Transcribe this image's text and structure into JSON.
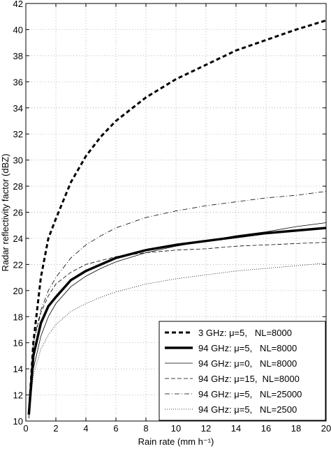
{
  "chart_data": {
    "type": "line",
    "xlabel": "Rain rate (mm h⁻¹)",
    "ylabel": "Radar reflectivity factor (dBZ)",
    "x": [
      0.2,
      0.5,
      1,
      1.5,
      2,
      3,
      4,
      5,
      6,
      8,
      10,
      12,
      14,
      16,
      18,
      20
    ],
    "series": [
      {
        "name": "3 GHz: μ=5,   NL=8000",
        "color": "#000000",
        "width": 3,
        "dash": "6 4",
        "values": [
          10.5,
          16,
          21,
          24,
          25.5,
          28.3,
          30.3,
          31.8,
          33,
          34.8,
          36.2,
          37.3,
          38.4,
          39.2,
          40,
          40.7
        ]
      },
      {
        "name": "94 GHz: μ=5,   NL=8000",
        "color": "#000000",
        "width": 3.5,
        "dash": "none",
        "values": [
          10.5,
          15,
          17.5,
          18.8,
          19.5,
          20.8,
          21.5,
          22,
          22.5,
          23.1,
          23.5,
          23.8,
          24.1,
          24.4,
          24.6,
          24.8
        ]
      },
      {
        "name": "94 GHz: μ=0,   NL=8000",
        "color": "#000000",
        "width": 0.8,
        "dash": "none",
        "values": [
          10.2,
          14,
          16.5,
          18,
          19,
          20.3,
          21.1,
          21.7,
          22.2,
          22.9,
          23.4,
          23.8,
          24.2,
          24.5,
          24.9,
          25.2
        ]
      },
      {
        "name": "94 GHz: μ=15,  NL=8000",
        "color": "#000000",
        "width": 0.8,
        "dash": "6 3",
        "values": [
          11,
          16,
          18.3,
          19.6,
          20.5,
          21.4,
          22,
          22.3,
          22.6,
          22.9,
          23.1,
          23.2,
          23.4,
          23.5,
          23.6,
          23.7
        ]
      },
      {
        "name": "94 GHz: μ=5,   NL=25000",
        "color": "#000000",
        "width": 0.8,
        "dash": "7 3 1 3",
        "values": [
          11,
          16,
          18.5,
          20,
          21,
          22.5,
          23.5,
          24.2,
          24.8,
          25.6,
          26.1,
          26.5,
          26.8,
          27.1,
          27.3,
          27.6
        ]
      },
      {
        "name": "94 GHz: μ=5,   NL=2500",
        "color": "#000000",
        "width": 0.8,
        "dash": "1 2",
        "values": [
          10.3,
          13.5,
          15.5,
          16.6,
          17.4,
          18.4,
          19,
          19.5,
          19.9,
          20.5,
          20.9,
          21.2,
          21.5,
          21.7,
          21.9,
          22.1
        ]
      }
    ],
    "xlim": [
      0,
      20
    ],
    "xticks": [
      0,
      2,
      4,
      6,
      8,
      10,
      12,
      14,
      16,
      18,
      20
    ],
    "ylim": [
      10,
      42
    ],
    "yticks": [
      10,
      12,
      14,
      16,
      18,
      20,
      22,
      24,
      26,
      28,
      30,
      32,
      34,
      36,
      38,
      40,
      42
    ],
    "grid": true,
    "legend": "lower right"
  }
}
